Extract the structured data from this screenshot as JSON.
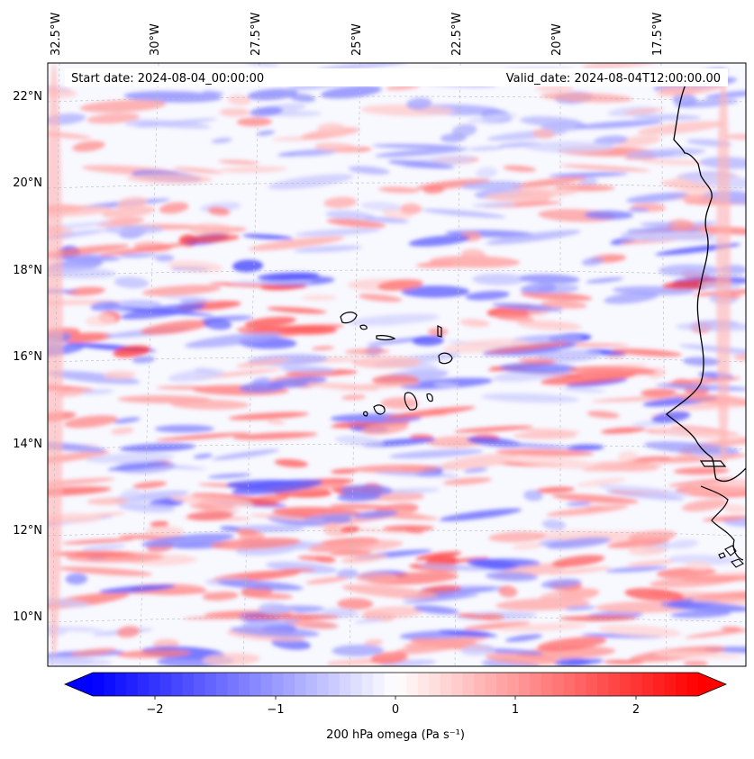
{
  "map": {
    "start_date": "Start date: 2024-08-04_00:00:00",
    "valid_date": "Valid_date: 2024-08-04T12:00:00.00",
    "longitude_labels": [
      "32.5°W",
      "30°W",
      "27.5°W",
      "25°W",
      "22.5°W",
      "20°W",
      "17.5°W"
    ],
    "latitude_labels": [
      "22°N",
      "20°N",
      "18°N",
      "16°N",
      "14°N",
      "12°N",
      "10°N"
    ],
    "colorbar": {
      "tick_labels": [
        "−2",
        "−1",
        "0",
        "1",
        "2"
      ],
      "label": "200 hPa omega (Pa s⁻¹)",
      "vmin": -2.7,
      "vmax": 2.7,
      "cmap": "bwr",
      "levels": 54
    },
    "colors": {
      "negative": "#0000ff",
      "neutral": "#ffffff",
      "positive": "#ff0000",
      "coastline": "#000000",
      "grid": "#bbbbbb"
    }
  }
}
